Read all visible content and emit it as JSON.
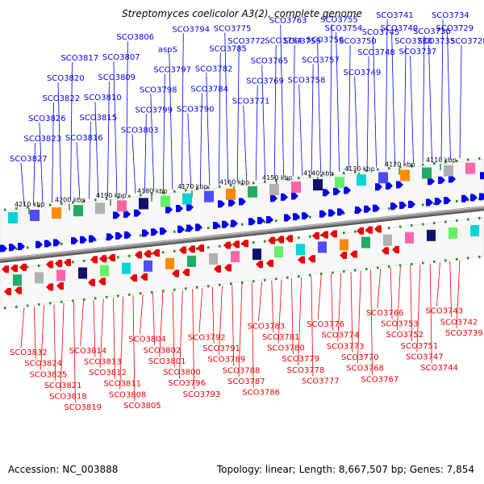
{
  "title": "Streptomyces coelicolor A3(2), complete genome",
  "footer": {
    "accession": "Accession: NC_003888",
    "summary": "Topology: linear; Length: 8,667,507 bp; Genes: 7,854"
  },
  "colors": {
    "forward": "#0000ee",
    "reverse": "#ee0000",
    "tick": "#2a8a2a",
    "backbone": "#888888"
  },
  "scale_labels": [
    "4210 kbp",
    "4200 kbp",
    "4190 kbp",
    "4180 kbp",
    "4170 kbp",
    "4160 kbp",
    "4150 kbp",
    "4140 kbp",
    "4130 kbp",
    "4120 kbp",
    "4110 kbp"
  ],
  "top_genes": [
    "SCO3827",
    "SCO3823",
    "SCO3826",
    "SCO3822",
    "SCO3820",
    "SCO3817",
    "SCO3816",
    "SCO3815",
    "SCO3810",
    "SCO3809",
    "SCO3807",
    "SCO3806",
    "SCO3803",
    "SCO3799",
    "SCO3798",
    "SCO3797",
    "aspS",
    "SCO3794",
    "SCO3790",
    "SCO3784",
    "SCO3782",
    "SCO3785",
    "SCO3775",
    "SCO3772",
    "SCO3771",
    "SCO3769",
    "SCO3765",
    "SCO3764",
    "SCO3763",
    "SCO3759",
    "SCO3758",
    "SCO3757",
    "SCO3756",
    "SCO3755",
    "SCO3754",
    "SCO3750",
    "SCO3749",
    "SCO3748",
    "SCO3745",
    "SCO3741",
    "SCO3740",
    "SCO3738",
    "SCO3737",
    "SCO3736",
    "SCO3735",
    "SCO3734",
    "SCO3729",
    "SCO3728"
  ],
  "bottom_genes": [
    "SCO3832",
    "SCO3824",
    "SCO3825",
    "SCO3821",
    "SCO3818",
    "SCO3819",
    "SCO3814",
    "SCO3813",
    "SCO3812",
    "SCO3811",
    "SCO3808",
    "SCO3805",
    "SCO3804",
    "SCO3802",
    "SCO3801",
    "SCO3800",
    "SCO3796",
    "SCO3793",
    "SCO3792",
    "SCO3791",
    "SCO3789",
    "SCO3788",
    "SCO3787",
    "SCO3786",
    "SCO3783",
    "SCO3781",
    "SCO3780",
    "SCO3779",
    "SCO3778",
    "SCO3777",
    "SCO3776",
    "SCO3774",
    "SCO3773",
    "SCO3770",
    "SCO3768",
    "SCO3767",
    "SCO3766",
    "SCO3753",
    "SCO3752",
    "SCO3751",
    "SCO3747",
    "SCO3744",
    "SCO3743",
    "SCO3742",
    "SCO3739"
  ]
}
